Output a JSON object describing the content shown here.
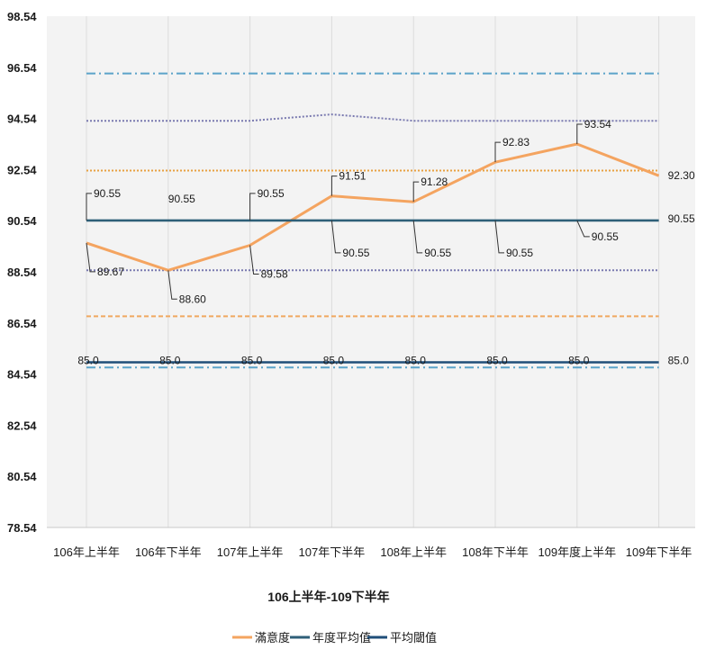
{
  "chart_data": {
    "type": "line",
    "title": "",
    "xlabel": "106上半年-109下半年",
    "ylabel": "",
    "ylim": [
      78.54,
      98.54
    ],
    "yticks": [
      98.54,
      96.54,
      94.54,
      92.54,
      90.54,
      88.54,
      86.54,
      84.54,
      82.54,
      80.54,
      78.54
    ],
    "categories": [
      "106年上半年",
      "106年下半年",
      "107年上半年",
      "107年下半年",
      "108年上半年",
      "108年下半年",
      "109年度上半年",
      "109年下半年"
    ],
    "series": [
      {
        "name": "滿意度",
        "color": "#F4A460",
        "values": [
          89.67,
          88.6,
          89.58,
          91.51,
          91.28,
          92.83,
          93.54,
          92.3
        ],
        "labels": [
          "89.67",
          "88.60",
          "89.58",
          "91.51",
          "91.28",
          "92.83",
          "93.54",
          "92.30"
        ]
      },
      {
        "name": "年度平均值",
        "color": "#2E5F78",
        "values": [
          90.55,
          90.55,
          90.55,
          90.55,
          90.55,
          90.55,
          90.55,
          90.55
        ],
        "labels": [
          "90.55",
          "90.55",
          "90.55",
          "90.55",
          "90.55",
          "90.55",
          "90.55",
          "90.55"
        ]
      },
      {
        "name": "平均閾值",
        "color": "#1F4E79",
        "values": [
          85.0,
          85.0,
          85.0,
          85.0,
          85.0,
          85.0,
          85.0,
          85.0
        ],
        "labels": [
          "85.0",
          "85.0",
          "85.0",
          "85.0",
          "85.0",
          "85.0",
          "85.0",
          "85.0"
        ]
      }
    ],
    "reference_lines": [
      {
        "style": "dash-dot",
        "color": "#5BA3C9",
        "values": [
          96.3,
          96.3,
          96.3,
          96.3,
          96.3,
          96.3,
          96.3,
          96.3
        ]
      },
      {
        "style": "dotted",
        "color": "#7A7AB0",
        "values": [
          94.45,
          94.45,
          94.45,
          94.7,
          94.45,
          94.45,
          94.45,
          94.45
        ]
      },
      {
        "style": "dotted",
        "color": "#E8A040",
        "values": [
          92.5,
          92.5,
          92.5,
          92.5,
          92.5,
          92.5,
          92.5,
          92.5
        ]
      },
      {
        "style": "dotted",
        "color": "#7A7AB0",
        "values": [
          88.6,
          88.6,
          88.6,
          88.6,
          88.6,
          88.6,
          88.6,
          88.6
        ]
      },
      {
        "style": "dashed",
        "color": "#F0A860",
        "values": [
          86.8,
          86.8,
          86.8,
          86.8,
          86.8,
          86.8,
          86.8,
          86.8
        ]
      },
      {
        "style": "dash-dot",
        "color": "#5BA3C9",
        "values": [
          84.8,
          84.8,
          84.8,
          84.8,
          84.8,
          84.8,
          84.8,
          84.8
        ]
      }
    ],
    "grid": "vertical",
    "legend_position": "bottom"
  }
}
